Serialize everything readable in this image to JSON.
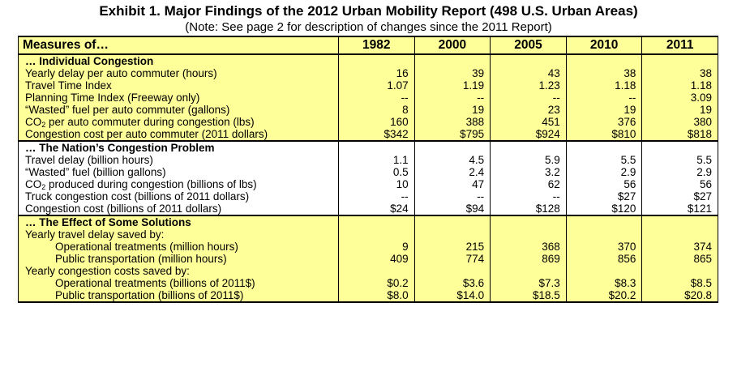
{
  "title": "Exhibit 1.  Major Findings of the 2012 Urban Mobility Report (498 U.S. Urban Areas)",
  "note": "(Note:  See page 2 for description of changes since the 2011 Report)",
  "header": {
    "label": "Measures of…",
    "years": [
      "1982",
      "2000",
      "2005",
      "2010",
      "2011"
    ]
  },
  "sections": [
    {
      "title": "… Individual Congestion",
      "rows": [
        {
          "label": "Yearly delay per auto commuter (hours)",
          "values": [
            "16",
            "39",
            "43",
            "38",
            "38"
          ]
        },
        {
          "label": "Travel Time Index",
          "values": [
            "1.07",
            "1.19",
            "1.23",
            "1.18",
            "1.18"
          ]
        },
        {
          "label": "Planning Time Index (Freeway only)",
          "values": [
            "--",
            "--",
            "--",
            "--",
            "3.09"
          ]
        },
        {
          "label": "“Wasted” fuel per auto commuter (gallons)",
          "values": [
            "8",
            "19",
            "23",
            "19",
            "19"
          ]
        },
        {
          "label_pre": "CO",
          "label_sub": "2",
          "label_post": " per auto commuter during congestion (lbs)",
          "values": [
            "160",
            "388",
            "451",
            "376",
            "380"
          ]
        },
        {
          "label": "Congestion cost per auto commuter (2011 dollars)",
          "values": [
            "$342",
            "$795",
            "$924",
            "$810",
            "$818"
          ]
        }
      ]
    },
    {
      "title": "… The Nation’s Congestion Problem",
      "rows": [
        {
          "label": "Travel delay (billion hours)",
          "values": [
            "1.1",
            "4.5",
            "5.9",
            "5.5",
            "5.5"
          ]
        },
        {
          "label": "“Wasted” fuel (billion gallons)",
          "values": [
            "0.5",
            "2.4",
            "3.2",
            "2.9",
            "2.9"
          ]
        },
        {
          "label_pre": "CO",
          "label_sub": "2",
          "label_post": " produced during congestion (billions of lbs)",
          "values": [
            "10",
            "47",
            "62",
            "56",
            "56"
          ]
        },
        {
          "label": "Truck congestion cost (billions of 2011 dollars)",
          "values": [
            "--",
            "--",
            "--",
            "$27",
            "$27"
          ]
        },
        {
          "label": "Congestion cost (billions of 2011 dollars)",
          "values": [
            "$24",
            "$94",
            "$128",
            "$120",
            "$121"
          ]
        }
      ]
    },
    {
      "title": "… The Effect of Some Solutions",
      "rows": [
        {
          "label": "Yearly travel delay saved by:",
          "values": [
            "",
            "",
            "",
            "",
            ""
          ]
        },
        {
          "label": "Operational treatments (million hours)",
          "indent": true,
          "values": [
            "9",
            "215",
            "368",
            "370",
            "374"
          ]
        },
        {
          "label": "Public transportation (million hours)",
          "indent": true,
          "values": [
            "409",
            "774",
            "869",
            "856",
            "865"
          ]
        },
        {
          "label": "Yearly congestion costs saved by:",
          "values": [
            "",
            "",
            "",
            "",
            ""
          ]
        },
        {
          "label": "Operational treatments (billions of 2011$)",
          "indent": true,
          "values": [
            "$0.2",
            "$3.6",
            "$7.3",
            "$8.3",
            "$8.5"
          ]
        },
        {
          "label": "Public transportation (billions of 2011$)",
          "indent": true,
          "values": [
            "$8.0",
            "$14.0",
            "$18.5",
            "$20.2",
            "$20.8"
          ]
        }
      ]
    }
  ]
}
